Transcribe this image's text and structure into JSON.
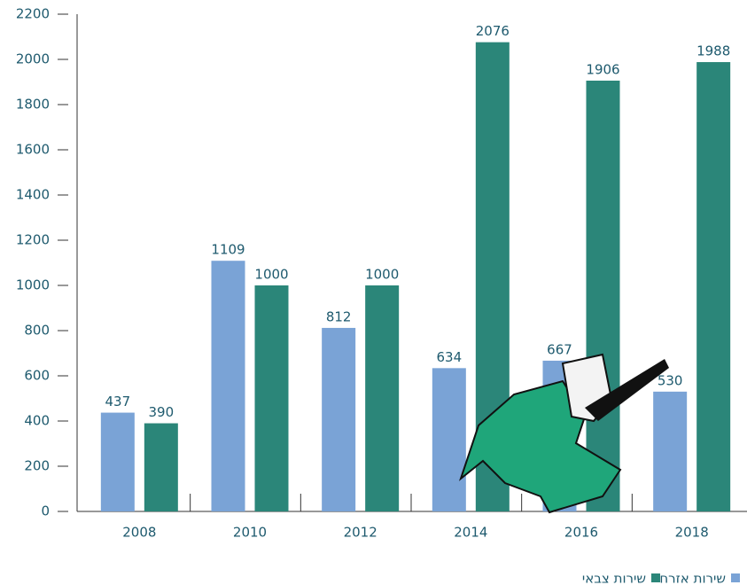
{
  "chart_data": {
    "type": "bar",
    "categories": [
      "2008",
      "2010",
      "2012",
      "2014",
      "2016",
      "2018"
    ],
    "series": [
      {
        "name": "שירות אזרחי",
        "color": "#7aa3d6",
        "values": [
          437,
          1109,
          812,
          634,
          667,
          530
        ]
      },
      {
        "name": "שירות צבאי",
        "color": "#2b8679",
        "values": [
          390,
          1000,
          1000,
          2076,
          1906,
          1988
        ]
      }
    ],
    "ylim": [
      0,
      2200
    ],
    "yticks": [
      0,
      200,
      400,
      600,
      800,
      1000,
      1200,
      1400,
      1600,
      1800,
      2000,
      2200
    ],
    "legend": "bottom-right"
  }
}
